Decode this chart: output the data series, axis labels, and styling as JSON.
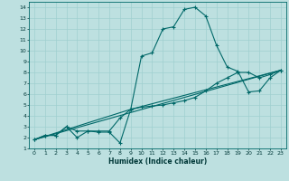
{
  "xlabel": "Humidex (Indice chaleur)",
  "bg_color": "#bde0e0",
  "grid_color": "#9fcfcf",
  "line_color": "#006868",
  "xlim": [
    -0.5,
    23.5
  ],
  "ylim": [
    1,
    14.5
  ],
  "xticks": [
    0,
    1,
    2,
    3,
    4,
    5,
    6,
    7,
    8,
    9,
    10,
    11,
    12,
    13,
    14,
    15,
    16,
    17,
    18,
    19,
    20,
    21,
    22,
    23
  ],
  "yticks": [
    1,
    2,
    3,
    4,
    5,
    6,
    7,
    8,
    9,
    10,
    11,
    12,
    13,
    14
  ],
  "series1_x": [
    0,
    1,
    2,
    3,
    4,
    5,
    6,
    7,
    8,
    9,
    10,
    11,
    12,
    13,
    14,
    15,
    16,
    17,
    18,
    19,
    20,
    21,
    22,
    23
  ],
  "series1_y": [
    1.8,
    2.2,
    2.2,
    3.0,
    2.0,
    2.6,
    2.5,
    2.5,
    1.5,
    4.6,
    9.5,
    9.8,
    12.0,
    12.2,
    13.8,
    14.0,
    13.2,
    10.5,
    8.5,
    8.1,
    6.2,
    6.3,
    7.5,
    8.2
  ],
  "series2_x": [
    0,
    1,
    2,
    3,
    4,
    5,
    6,
    7,
    8,
    9,
    10,
    11,
    12,
    13,
    14,
    15,
    16,
    17,
    18,
    19,
    20,
    21,
    22,
    23
  ],
  "series2_y": [
    1.8,
    2.2,
    2.2,
    3.0,
    2.6,
    2.6,
    2.6,
    2.6,
    3.8,
    4.6,
    4.8,
    4.9,
    5.0,
    5.2,
    5.4,
    5.7,
    6.3,
    7.0,
    7.5,
    8.0,
    8.0,
    7.5,
    7.8,
    8.2
  ],
  "series3_x": [
    0,
    23
  ],
  "series3_y": [
    1.8,
    8.2
  ],
  "series4_x": [
    0,
    9,
    23
  ],
  "series4_y": [
    1.8,
    4.6,
    8.2
  ]
}
